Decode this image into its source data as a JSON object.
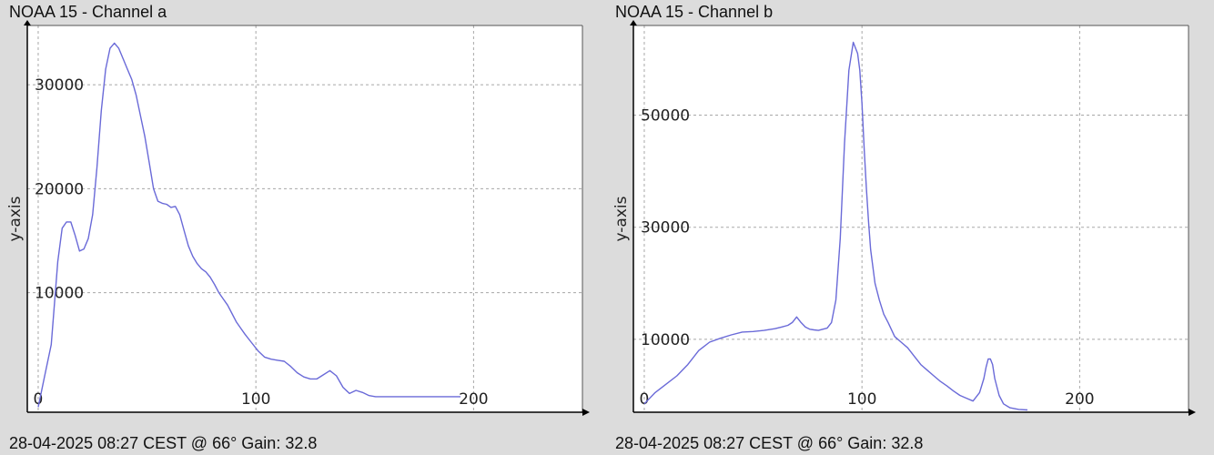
{
  "panels": [
    {
      "title": "NOAA 15 - Channel a",
      "footer": "28-04-2025 08:27 CEST @ 66° Gain: 32.8"
    },
    {
      "title": "NOAA 15 - Channel b",
      "footer": "28-04-2025 08:27 CEST @ 66° Gain: 32.8"
    }
  ],
  "colors": {
    "background": "#dcdcdc",
    "plot_area": "#ffffff",
    "line": "#6a6ad8",
    "grid": "#a8a8a8",
    "axis": "#000000"
  },
  "chart_data": [
    {
      "type": "line",
      "title": "NOAA 15 - Channel a",
      "xlabel": "",
      "ylabel": "y-axis",
      "xlim": [
        -5,
        250
      ],
      "ylim": [
        -1500,
        35700
      ],
      "xticks": [
        0,
        100,
        200
      ],
      "xtick_labels": [
        "0",
        "100",
        "200"
      ],
      "yticks": [
        10000,
        20000,
        30000
      ],
      "ytick_labels": [
        "10000",
        "20000",
        "30000"
      ],
      "grid": true,
      "series": [
        {
          "x": [
            0,
            3,
            6,
            9,
            11,
            13,
            15,
            17,
            19,
            21,
            23,
            25,
            27,
            29,
            31,
            33,
            35,
            37,
            39,
            41,
            43,
            45,
            47,
            49,
            51,
            53,
            55,
            57,
            59,
            61,
            63,
            65,
            67,
            69,
            71,
            73,
            75,
            77,
            79,
            81,
            83,
            85,
            87,
            89,
            91,
            93,
            95,
            98,
            101,
            104,
            107,
            110,
            113,
            116,
            119,
            122,
            125,
            128,
            131,
            134,
            137,
            140,
            143,
            146,
            149,
            152,
            155,
            158,
            160,
            162,
            164,
            166,
            168,
            170,
            173,
            176,
            179,
            182,
            185,
            188,
            191,
            194
          ],
          "y": [
            -1000,
            2000,
            5000,
            13000,
            16200,
            16800,
            16800,
            15500,
            14000,
            14200,
            15200,
            17500,
            22000,
            27500,
            31500,
            33500,
            34000,
            33500,
            32500,
            31500,
            30500,
            29000,
            27000,
            25000,
            22500,
            20000,
            18800,
            18600,
            18500,
            18200,
            18300,
            17500,
            16000,
            14500,
            13500,
            12800,
            12300,
            12000,
            11500,
            10800,
            10000,
            9400,
            8800,
            8000,
            7200,
            6600,
            6000,
            5200,
            4400,
            3800,
            3600,
            3500,
            3400,
            2900,
            2300,
            1900,
            1700,
            1700,
            2100,
            2500,
            2000,
            900,
            300,
            600,
            400,
            100,
            0,
            0,
            0,
            0,
            0,
            0,
            0,
            0,
            0,
            0,
            0,
            0,
            0,
            0,
            0,
            0
          ]
        }
      ]
    },
    {
      "type": "line",
      "title": "NOAA 15 - Channel b",
      "xlabel": "",
      "ylabel": "y-axis",
      "xlim": [
        -5,
        250
      ],
      "ylim": [
        -3000,
        66000
      ],
      "xticks": [
        0,
        100,
        200
      ],
      "xtick_labels": [
        "0",
        "100",
        "200"
      ],
      "yticks": [
        10000,
        30000,
        50000
      ],
      "ytick_labels": [
        "10000",
        "30000",
        "50000"
      ],
      "grid": true,
      "series": [
        {
          "x": [
            0,
            5,
            10,
            15,
            20,
            25,
            30,
            35,
            40,
            45,
            50,
            55,
            60,
            63,
            66,
            68,
            70,
            72,
            74,
            76,
            78,
            80,
            82,
            84,
            86,
            88,
            90,
            92,
            94,
            96,
            98,
            99,
            100,
            101,
            102,
            103,
            104,
            106,
            108,
            110,
            112,
            115,
            118,
            121,
            124,
            127,
            130,
            133,
            136,
            139,
            142,
            145,
            148,
            151,
            154,
            156,
            157,
            158,
            159,
            160,
            161,
            163,
            165,
            168,
            172,
            176
          ],
          "y": [
            -1500,
            500,
            2000,
            3500,
            5500,
            8000,
            9500,
            10200,
            10800,
            11300,
            11400,
            11600,
            11900,
            12200,
            12500,
            13000,
            14000,
            13000,
            12200,
            11800,
            11700,
            11600,
            11800,
            12000,
            13000,
            17000,
            28000,
            45000,
            58000,
            63000,
            61000,
            58000,
            52000,
            44000,
            37000,
            31000,
            26000,
            20000,
            17000,
            14500,
            13000,
            10500,
            9500,
            8500,
            7000,
            5500,
            4500,
            3500,
            2500,
            1700,
            800,
            0,
            -500,
            -1000,
            500,
            3000,
            5000,
            6500,
            6500,
            5500,
            3000,
            0,
            -1500,
            -2200,
            -2500,
            -2600
          ]
        }
      ]
    }
  ]
}
